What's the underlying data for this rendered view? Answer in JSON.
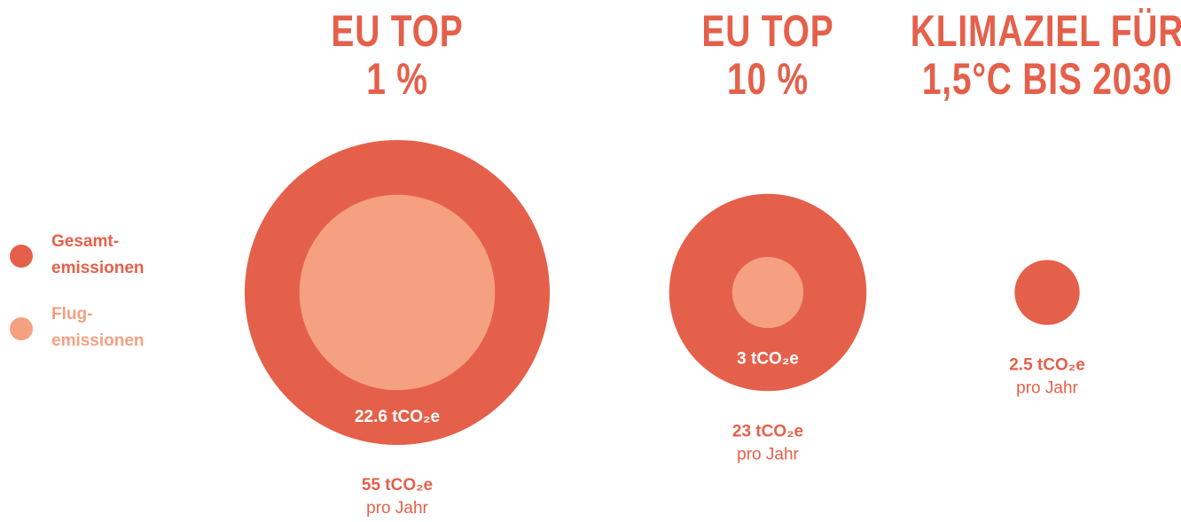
{
  "chart_data": {
    "type": "bubble",
    "categories": [
      "EU TOP\n1 %",
      "EU TOP\n10 %",
      "KLIMAZIEL FÜR\n1,5°C BIS 2030"
    ],
    "series": [
      {
        "name": "Gesamt-\nemissionen",
        "color": "#e5604a",
        "values": [
          55,
          23,
          2.5
        ],
        "value_labels": [
          "55 tCO₂e",
          "23 tCO₂e",
          "2.5 tCO₂e"
        ]
      },
      {
        "name": "Flug-\nemissionen",
        "color": "#f4a081",
        "values": [
          22.6,
          3,
          null
        ],
        "value_labels": [
          "22.6 tCO₂e",
          "3 tCO₂e",
          null
        ]
      }
    ],
    "annotation": "pro Jahr"
  }
}
